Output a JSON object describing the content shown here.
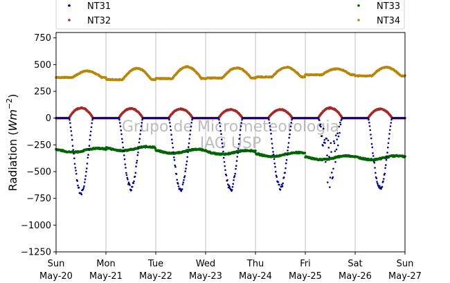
{
  "chart_data": {
    "type": "scatter",
    "title": "",
    "ylabel": "Radiation (Wm⁻²)",
    "ylabel_parts": {
      "prefix": "Radiation (",
      "unit": "Wm",
      "exp": "−2",
      "suffix": ")"
    },
    "xlabel": "",
    "ylim": [
      -1250,
      800
    ],
    "xlim": [
      "2018-05-20",
      "2018-05-27"
    ],
    "yticks": [
      -1250,
      -1000,
      -750,
      -500,
      -250,
      0,
      250,
      500,
      750
    ],
    "ytick_labels": [
      "−1250",
      "−1000",
      "−750",
      "−500",
      "−250",
      "0",
      "250",
      "500",
      "750"
    ],
    "xticks": [
      {
        "day": "Sun",
        "date": "May-20"
      },
      {
        "day": "Mon",
        "date": "May-21"
      },
      {
        "day": "Tue",
        "date": "May-22"
      },
      {
        "day": "Wed",
        "date": "May-23"
      },
      {
        "day": "Thu",
        "date": "May-24"
      },
      {
        "day": "Fri",
        "date": "May-25"
      },
      {
        "day": "Sat",
        "date": "May-26"
      },
      {
        "day": "Sun",
        "date": "May-27"
      }
    ],
    "grid": "vertical",
    "legend_placement": "top",
    "watermark": [
      "Grupo de Micrometeorologia",
      "IAG USP"
    ],
    "series": [
      {
        "name": "NT31",
        "color": "#00008b",
        "night_value": 0,
        "daily_min": [
          -730,
          -680,
          -685,
          -690,
          -670,
          -680,
          -680
        ],
        "note_values_shape": "diurnal trough, zero at night"
      },
      {
        "name": "NT32",
        "color": "#a52a2a",
        "night_value": 0,
        "daily_max": [
          100,
          95,
          90,
          85,
          85,
          100,
          90
        ]
      },
      {
        "name": "NT33",
        "color": "#006400",
        "daily_mean": [
          -300,
          -285,
          -310,
          -320,
          -340,
          -370,
          -370
        ]
      },
      {
        "name": "NT34",
        "color": "#b8860b",
        "night_min": [
          380,
          360,
          370,
          375,
          385,
          405,
          395
        ],
        "daily_max": [
          440,
          465,
          480,
          470,
          475,
          460,
          475
        ]
      }
    ]
  }
}
